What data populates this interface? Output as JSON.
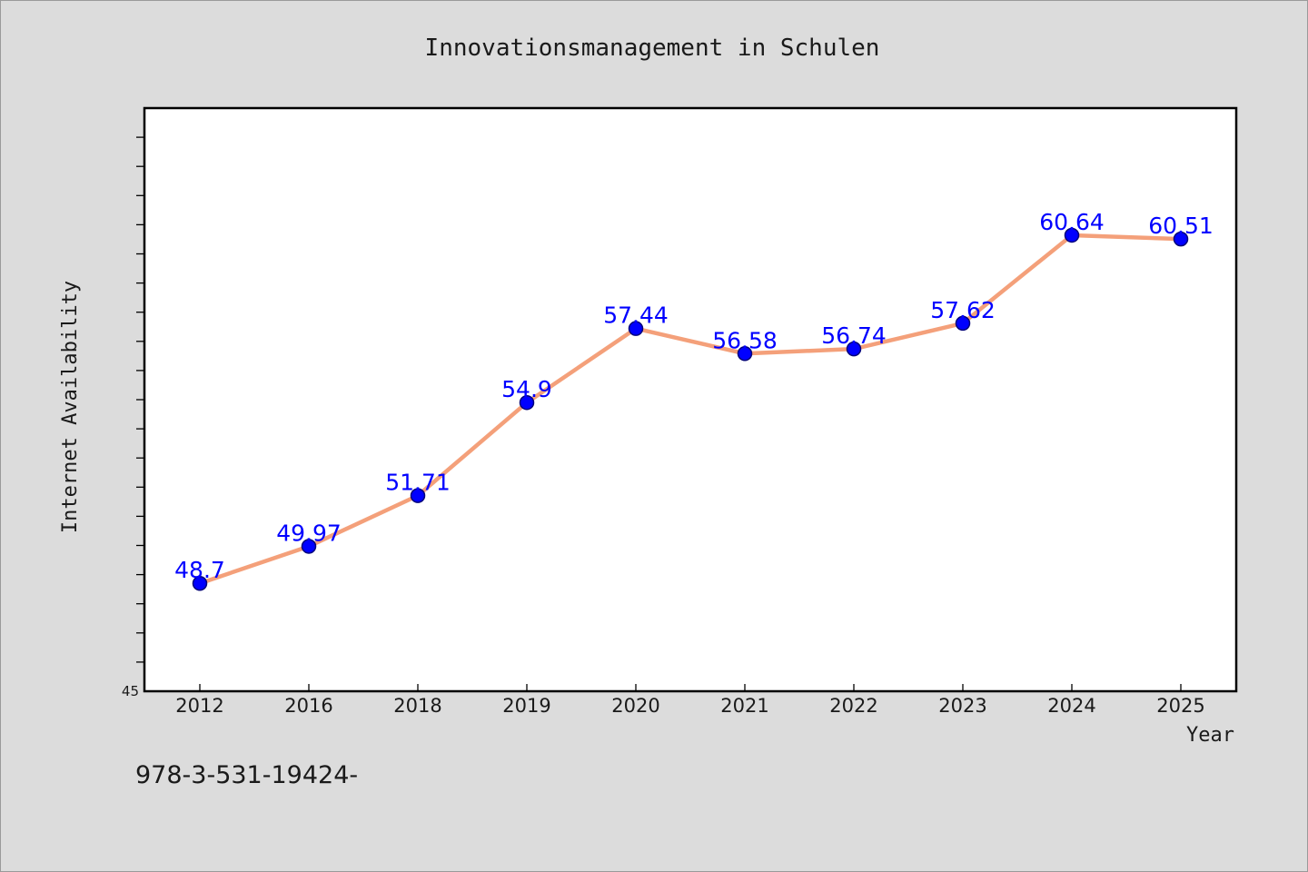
{
  "chart_data": {
    "type": "line",
    "title": "Innovationsmanagement in Schulen",
    "xlabel": "Year",
    "ylabel": "Internet Availability",
    "categories": [
      "2012",
      "2016",
      "2018",
      "2019",
      "2020",
      "2021",
      "2022",
      "2023",
      "2024",
      "2025"
    ],
    "series": [
      {
        "values": [
          48.7,
          49.97,
          51.71,
          54.9,
          57.44,
          56.58,
          56.74,
          57.62,
          60.64,
          60.51
        ],
        "labels": [
          "48.7",
          "49.97",
          "51.71",
          "54.9",
          "57.44",
          "56.58",
          "56.74",
          "57.62",
          "60.64",
          "60.51"
        ],
        "line_color": "#f4a07a",
        "marker_color": "#0000ff"
      }
    ],
    "ylim": [
      45,
      65
    ],
    "ytick_labels": [
      "45"
    ],
    "grid": false,
    "legend": "none",
    "plot_background": "#ffffff",
    "figure_background": "#dcdcdc"
  },
  "footer": {
    "text": "978-3-531-19424-"
  }
}
